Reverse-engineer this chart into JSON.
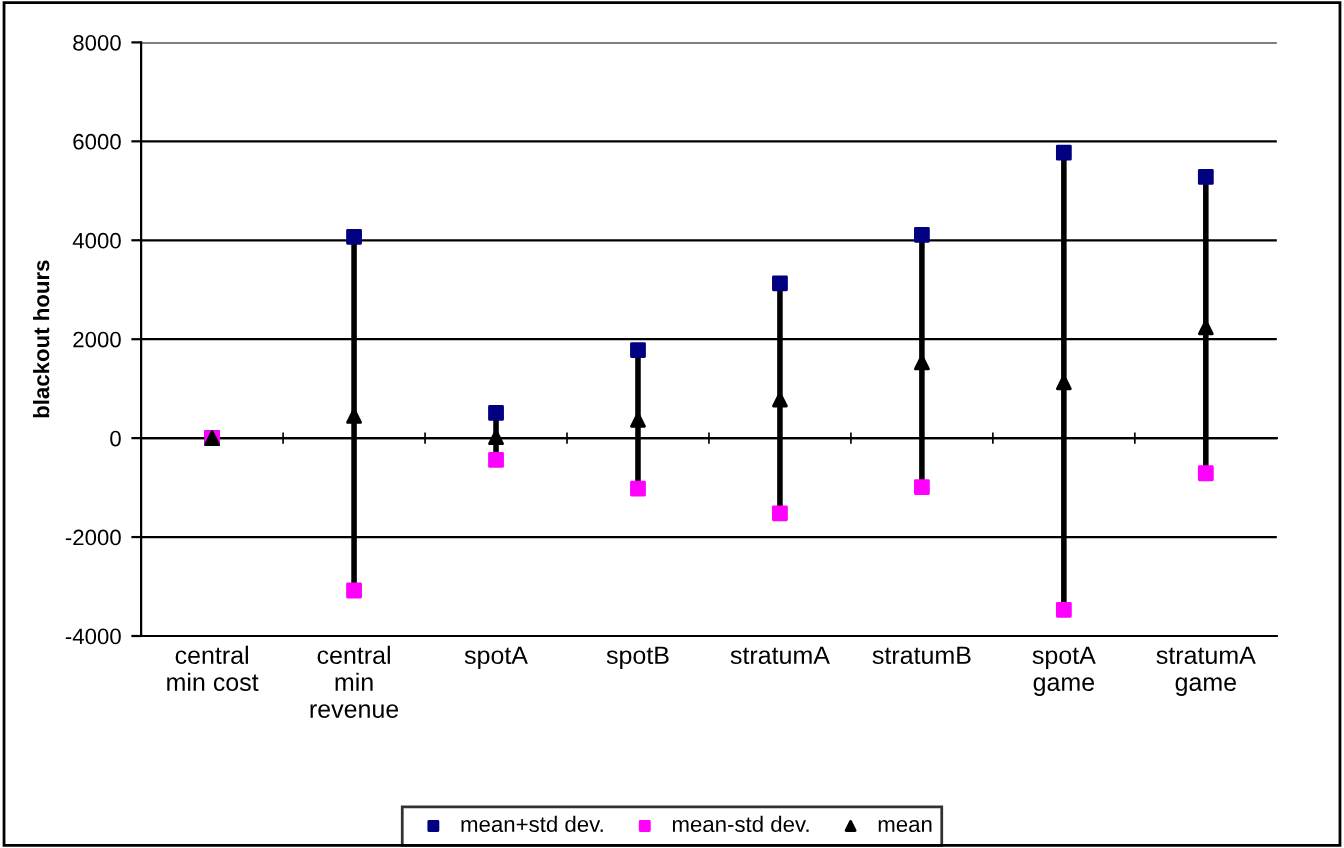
{
  "chart_data": {
    "type": "scatter",
    "ylabel": "blackout hours",
    "categories": [
      "central\nmin cost",
      "central\nmin\nrevenue",
      "spotA",
      "spotB",
      "stratumA",
      "stratumB",
      "spotA\ngame",
      "stratumA\ngame"
    ],
    "series": [
      {
        "name": "mean+std dev.",
        "color": "#000080",
        "marker": "square",
        "values": [
          0,
          4070,
          510,
          1780,
          3130,
          4110,
          5770,
          5280
        ]
      },
      {
        "name": "mean-std dev.",
        "color": "#ff00ff",
        "marker": "square",
        "values": [
          0,
          -3080,
          -440,
          -1020,
          -1520,
          -990,
          -3470,
          -710
        ]
      },
      {
        "name": "mean",
        "color": "#000000",
        "marker": "triangle",
        "values": [
          0,
          450,
          20,
          370,
          780,
          1530,
          1130,
          2240
        ]
      }
    ],
    "ylim": [
      -4000,
      8000
    ],
    "yticks": [
      -4000,
      -2000,
      0,
      2000,
      4000,
      6000,
      8000
    ],
    "grid": "y",
    "legend": "bottom"
  }
}
